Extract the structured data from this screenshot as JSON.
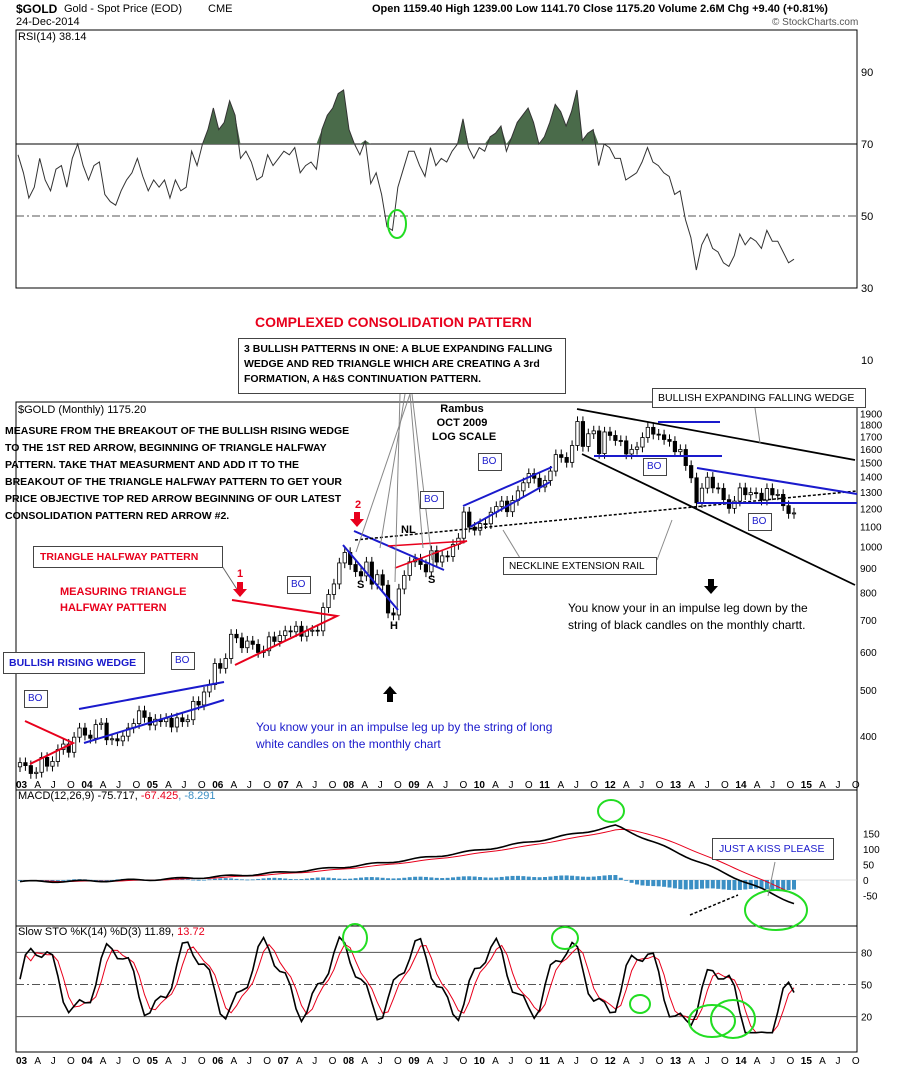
{
  "header": {
    "symbol": "$GOLD",
    "name": "Gold - Spot Price (EOD)",
    "exchange": "CME",
    "date": "24-Dec-2014",
    "quote": "Open 1159.40  High 1239.00  Low 1141.70  Close 1175.20  Volume 2.6M  Chg +9.40 (+0.81%)",
    "watermark": "© StockCharts.com"
  },
  "panels": {
    "rsi_label": "RSI(14) 38.14",
    "price_label": "$GOLD (Monthly) 1175.20",
    "macd_label_main": "MACD(12,26,9) -75.717, ",
    "macd_label_signal": "-67.425",
    "macd_label_hist": ", -8.291",
    "sto_label_main": "Slow STO %K(14) %D(3) 11.89, ",
    "sto_label_d": "13.72"
  },
  "annotations": {
    "complexed": "COMPLEXED CONSOLIDATION PATTERN",
    "three_patterns": [
      "3 BULLISH PATTERNS IN ONE:  A BLUE EXPANDING FALLING",
      "WEDGE AND RED TRIANGLE WHICH ARE CREATING A 3rd",
      "FORMATION, A H&S CONTINUATION PATTERN."
    ],
    "measure": [
      "MEASURE FROM THE BREAKOUT OF THE BULLISH RISING WEDGE",
      "TO THE 1ST RED ARROW, BEGINNING OF TRIANGLE HALFWAY",
      "PATTERN. TAKE THAT MEASURMENT AND ADD IT TO THE",
      "BREAKOUT OF THE TRIANGLE HALFWAY PATTERN TO GET YOUR",
      "PRICE OBJECTIVE TOP RED ARROW BEGINNING OF OUR LATEST",
      "CONSOLIDATION PATTERN RED ARROW #2."
    ],
    "rambus": [
      "Rambus",
      "OCT 2009",
      "LOG SCALE"
    ],
    "bullish_efw": "BULLISH EXPANDING FALLING WEDGE",
    "triangle_halfway": "TRIANGLE HALFWAY PATTERN",
    "measuring_triangle": [
      "MEASURING TRIANGLE",
      "HALFWAY PATTERN"
    ],
    "bullish_rising_wedge": "BULLISH RISING WEDGE",
    "neckline": "NECKLINE EXTENSION RAIL",
    "impulse_down": [
      "You know your in an impulse leg down by the",
      "string of black candles on the monthly chartt."
    ],
    "impulse_up": [
      "You know your in an impulse leg up by the string of long",
      "white candles on the monthly chart"
    ],
    "kiss": "JUST A KISS PLEASE",
    "bo": "BO",
    "arrow1": "1",
    "arrow2": "2",
    "hs_s1": "S",
    "hs_h": "H",
    "hs_s2": "S",
    "hs_nl": "NL"
  },
  "colors": {
    "candle_up": "#ffffff",
    "candle_down": "#000000",
    "blue_lines": "#1a1acc",
    "red_lines": "#e8001c",
    "rsi_fill": "#4a6b4a",
    "macd_hist": "#3b8fc4",
    "macd_signal": "#e8001c",
    "highlight_circle": "#22dd22"
  },
  "chart_data": {
    "type": "candlestick",
    "title": "$GOLD (Monthly) 1175.20",
    "scale": "log",
    "price_axis_ticks": [
      400,
      500,
      600,
      700,
      800,
      900,
      1000,
      1100,
      1200,
      1300,
      1400,
      1500,
      1600,
      1700,
      1800,
      1900
    ],
    "rsi_axis_ticks": [
      10,
      30,
      50,
      70,
      90
    ],
    "macd_axis_ticks": [
      150,
      100,
      50,
      0,
      -50
    ],
    "sto_axis_ticks": [
      80,
      50,
      20
    ],
    "x_tick_labels": [
      "03",
      "A",
      "J",
      "O",
      "04",
      "A",
      "J",
      "O",
      "05",
      "A",
      "J",
      "O",
      "06",
      "A",
      "J",
      "O",
      "07",
      "A",
      "J",
      "O",
      "08",
      "A",
      "J",
      "O",
      "09",
      "A",
      "J",
      "O",
      "10",
      "A",
      "J",
      "O",
      "11",
      "A",
      "J",
      "O",
      "12",
      "A",
      "J",
      "O",
      "13",
      "A",
      "J",
      "O",
      "14",
      "A",
      "J",
      "O",
      "15",
      "A",
      "J",
      "O"
    ],
    "monthly_close": [
      352,
      347,
      334,
      336,
      361,
      346,
      354,
      375,
      385,
      370,
      398,
      416,
      402,
      396,
      423,
      426,
      393,
      395,
      391,
      400,
      416,
      425,
      452,
      438,
      422,
      434,
      429,
      436,
      418,
      437,
      429,
      433,
      473,
      465,
      495,
      513,
      568,
      555,
      582,
      654,
      643,
      613,
      633,
      623,
      599,
      604,
      646,
      632,
      650,
      665,
      662,
      680,
      648,
      665,
      667,
      665,
      744,
      793,
      834,
      923,
      971,
      916,
      885,
      867,
      927,
      833,
      872,
      829,
      725,
      718,
      814,
      869,
      928,
      941,
      916,
      884,
      979,
      927,
      955,
      952,
      1009,
      1040,
      1180,
      1097,
      1081,
      1116,
      1115,
      1179,
      1212,
      1244,
      1182,
      1248,
      1307,
      1359,
      1421,
      1389,
      1332,
      1374,
      1438,
      1557,
      1536,
      1500,
      1627,
      1827,
      1620,
      1722,
      1746,
      1565,
      1737,
      1708,
      1667,
      1664,
      1562,
      1597,
      1615,
      1691,
      1776,
      1719,
      1713,
      1675,
      1660,
      1579,
      1596,
      1477,
      1392,
      1234,
      1324,
      1396,
      1326,
      1323,
      1253,
      1201,
      1244,
      1326,
      1283,
      1296,
      1292,
      1250,
      1322,
      1282,
      1285,
      1217,
      1172,
      1175
    ],
    "rsi_values": [
      67,
      62,
      55,
      58,
      66,
      60,
      57,
      63,
      64,
      58,
      66,
      70,
      64,
      60,
      64,
      65,
      56,
      54,
      53,
      57,
      60,
      62,
      66,
      61,
      57,
      60,
      58,
      60,
      55,
      60,
      57,
      58,
      68,
      64,
      70,
      74,
      80,
      74,
      76,
      82,
      78,
      66,
      68,
      65,
      60,
      61,
      67,
      64,
      66,
      68,
      67,
      69,
      62,
      64,
      65,
      63,
      74,
      78,
      80,
      84,
      85,
      74,
      70,
      67,
      71,
      59,
      62,
      56,
      47,
      46,
      58,
      63,
      68,
      68,
      64,
      61,
      69,
      64,
      66,
      65,
      68,
      70,
      77,
      69,
      66,
      69,
      68,
      72,
      73,
      75,
      68,
      72,
      76,
      78,
      80,
      76,
      70,
      72,
      76,
      81,
      79,
      75,
      79,
      85,
      71,
      73,
      74,
      64,
      70,
      69,
      66,
      66,
      60,
      61,
      62,
      65,
      69,
      65,
      64,
      62,
      61,
      56,
      57,
      49,
      44,
      35,
      42,
      45,
      41,
      40,
      37,
      36,
      39,
      45,
      42,
      44,
      43,
      41,
      46,
      43,
      43,
      40,
      37,
      38
    ],
    "macd_series": [
      {
        "name": "MACD(12,26,9)",
        "last": -75.717
      },
      {
        "name": "signal",
        "last": -67.425
      },
      {
        "name": "histogram",
        "last": -8.291
      }
    ],
    "sto_series": [
      {
        "name": "%K(14)",
        "last": 11.89
      },
      {
        "name": "%D(3)",
        "last": 13.72
      }
    ]
  }
}
